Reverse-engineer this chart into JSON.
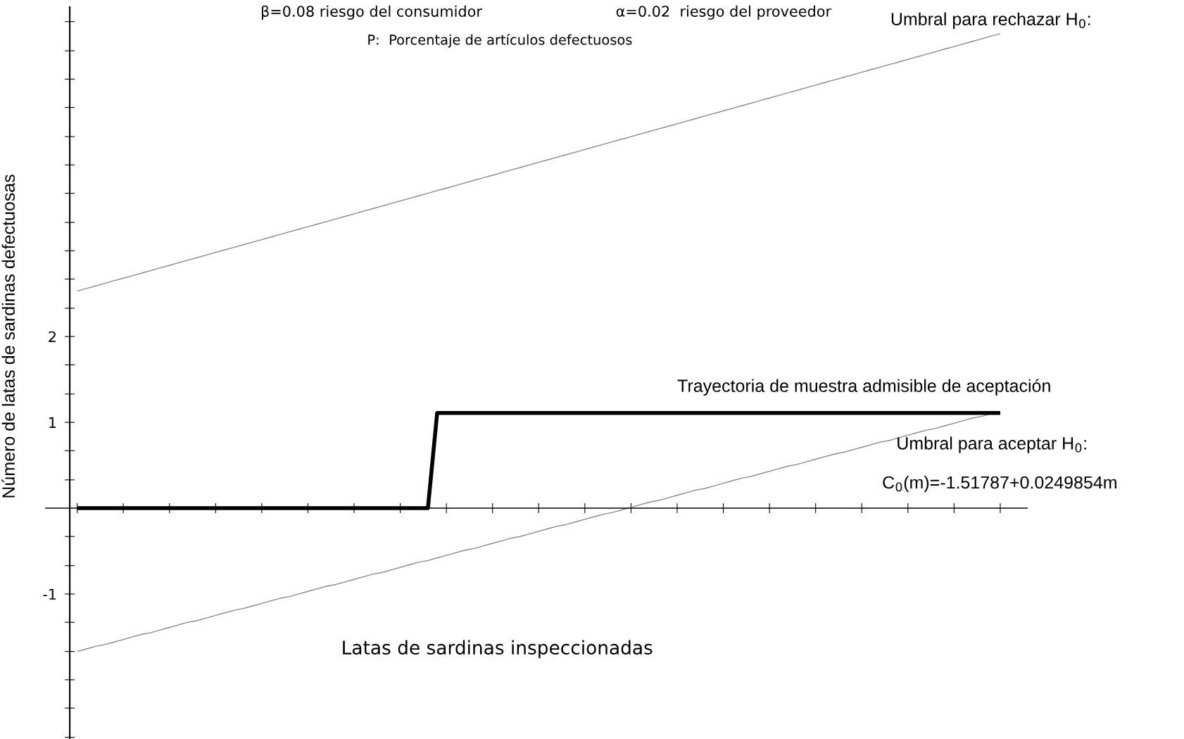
{
  "chart_data": {
    "type": "line",
    "xlabel": "Latas de sardinas inspeccionadas",
    "ylabel": "Número de latas de sardinas defectuosas",
    "annotations": [
      "β=0.08 riesgo del consumidor",
      "α=0.02  riesgo del proveedor",
      "P:  Porcentaje de artículos defectuosos",
      "Umbral para rechazar H$_{0}$:",
      "Trayectoria de muestra admisible de aceptación",
      "Umbral para aceptar H$_{0}$:",
      "C$_{0}$(m)=-1.51787+0.0249854m"
    ],
    "categories": [
      null,
      null,
      null,
      null,
      null,
      null,
      null,
      null,
      null,
      null,
      null,
      null,
      null,
      null,
      null,
      null,
      null,
      null,
      null,
      null,
      null,
      null,
      null,
      null,
      null,
      null,
      null,
      null,
      null,
      null,
      null,
      null,
      null,
      null,
      null,
      null,
      null,
      null,
      null,
      null,
      null,
      null,
      null,
      null,
      null,
      null,
      null,
      null,
      null,
      null,
      null,
      null,
      null,
      null,
      null,
      null,
      null,
      null,
      null,
      null,
      null,
      null,
      null,
      null,
      null,
      null,
      null,
      null,
      null,
      null,
      null,
      null,
      null,
      null,
      null,
      null,
      null,
      null,
      null,
      null,
      null,
      null,
      null,
      null,
      null,
      null,
      null,
      null,
      null,
      null,
      null,
      null,
      null,
      null,
      null,
      null,
      null,
      null,
      null,
      null,
      null
    ],
    "ylim": [
      -2.69,
      5.84
    ],
    "yticks": [
      {
        "value": -2.67,
        "label": null
      },
      {
        "value": -2.33,
        "label": null
      },
      {
        "value": -2,
        "label": null
      },
      {
        "value": -1.67,
        "label": null
      },
      {
        "value": -1.33,
        "label": null
      },
      -1,
      {
        "value": -0.67,
        "label": null
      },
      {
        "value": -0.33,
        "label": null
      },
      {
        "value": 0.33,
        "label": null
      },
      {
        "value": 0.67,
        "label": null
      },
      1,
      {
        "value": 1.33,
        "label": null
      },
      {
        "value": 1.67,
        "label": null
      },
      2,
      {
        "value": 2.33,
        "label": null
      },
      {
        "value": 2.67,
        "label": null
      },
      {
        "value": 3,
        "label": null
      },
      {
        "value": 3.33,
        "label": null
      },
      {
        "value": 3.67,
        "label": null
      },
      {
        "value": 4,
        "label": null
      },
      {
        "value": 4.33,
        "label": null
      },
      {
        "value": 4.67,
        "label": null
      },
      {
        "value": 5,
        "label": null
      },
      {
        "value": 5.33,
        "label": null
      },
      {
        "value": 5.67,
        "label": null
      }
    ],
    "grid": false,
    "legend": false,
    "tick_labels": "y",
    "line_style": "solid",
    "series": [
      {
        "color": "#8a8a8a",
        "values": [
          2.53,
          2.56,
          2.59,
          2.62,
          2.65,
          2.68,
          2.71,
          2.74,
          2.77,
          2.8,
          2.83,
          2.86,
          2.89,
          2.92,
          2.95,
          2.98,
          3.01,
          3.04,
          3.07,
          3.1,
          3.13,
          3.16,
          3.19,
          3.22,
          3.25,
          3.28,
          3.31,
          3.34,
          3.37,
          3.4,
          3.43,
          3.46,
          3.49,
          3.52,
          3.55,
          3.58,
          3.61,
          3.64,
          3.67,
          3.7,
          3.73,
          3.76,
          3.79,
          3.82,
          3.85,
          3.88,
          3.91,
          3.94,
          3.97,
          4.0,
          4.03,
          4.06,
          4.09,
          4.12,
          4.15,
          4.18,
          4.21,
          4.24,
          4.27,
          4.3,
          4.33,
          4.36,
          4.39,
          4.42,
          4.45,
          4.48,
          4.51,
          4.54,
          4.57,
          4.6,
          4.63,
          4.66,
          4.69,
          4.72,
          4.75,
          4.78,
          4.81,
          4.84,
          4.87,
          4.9,
          4.93,
          4.96,
          4.99,
          5.02,
          5.05,
          5.08,
          5.11,
          5.14,
          5.17,
          5.2,
          5.23,
          5.26,
          5.29,
          5.32,
          5.35,
          5.38,
          5.41,
          5.44,
          5.47,
          5.5,
          5.53
        ]
      },
      {
        "color": "#8a8a8a",
        "values": [
          -1.67,
          -1.64,
          -1.61,
          -1.59,
          -1.56,
          -1.53,
          -1.5,
          -1.47,
          -1.45,
          -1.42,
          -1.39,
          -1.36,
          -1.33,
          -1.31,
          -1.28,
          -1.25,
          -1.22,
          -1.19,
          -1.17,
          -1.14,
          -1.11,
          -1.08,
          -1.05,
          -1.03,
          -1.0,
          -0.97,
          -0.94,
          -0.91,
          -0.89,
          -0.86,
          -0.83,
          -0.8,
          -0.77,
          -0.75,
          -0.72,
          -0.69,
          -0.66,
          -0.63,
          -0.61,
          -0.58,
          -0.55,
          -0.52,
          -0.49,
          -0.47,
          -0.44,
          -0.41,
          -0.38,
          -0.35,
          -0.33,
          -0.3,
          -0.27,
          -0.24,
          -0.21,
          -0.19,
          -0.16,
          -0.13,
          -0.1,
          -0.07,
          -0.05,
          -0.02,
          0.01,
          0.04,
          0.07,
          0.09,
          0.12,
          0.15,
          0.18,
          0.21,
          0.23,
          0.26,
          0.29,
          0.32,
          0.35,
          0.37,
          0.4,
          0.43,
          0.46,
          0.49,
          0.51,
          0.54,
          0.57,
          0.6,
          0.63,
          0.65,
          0.68,
          0.71,
          0.74,
          0.77,
          0.79,
          0.82,
          0.85,
          0.88,
          0.91,
          0.93,
          0.96,
          0.99,
          1.02,
          1.05,
          1.07,
          1.1,
          null
        ]
      },
      {
        "color": "#000000",
        "values": [
          0,
          0,
          0,
          0,
          0,
          0,
          0,
          0,
          0,
          0,
          0,
          0,
          0,
          0,
          0,
          0,
          0,
          0,
          0,
          0,
          0,
          0,
          0,
          0,
          0,
          0,
          0,
          0,
          0,
          0,
          0,
          0,
          0,
          0,
          0,
          0,
          0,
          0,
          0,
          1.11,
          1.11,
          1.11,
          1.11,
          1.11,
          1.11,
          1.11,
          1.11,
          1.11,
          1.11,
          1.11,
          1.11,
          1.11,
          1.11,
          1.11,
          1.11,
          1.11,
          1.11,
          1.11,
          1.11,
          1.11,
          1.11,
          1.11,
          1.11,
          1.11,
          1.11,
          1.11,
          1.11,
          1.11,
          1.11,
          1.11,
          1.11,
          1.11,
          1.11,
          1.11,
          1.11,
          1.11,
          1.11,
          1.11,
          1.11,
          1.11,
          1.11,
          1.11,
          1.11,
          1.11,
          1.11,
          1.11,
          1.11,
          1.11,
          1.11,
          1.11,
          1.11,
          1.11,
          1.11,
          1.11,
          1.11,
          1.11,
          1.11,
          1.11,
          1.11,
          1.11,
          1.11
        ]
      }
    ]
  }
}
